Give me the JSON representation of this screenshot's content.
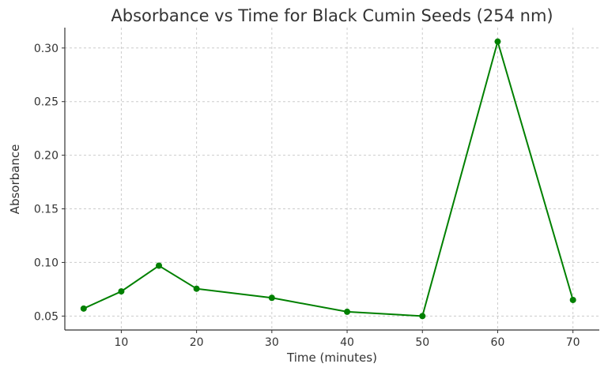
{
  "chart_data": {
    "type": "line",
    "title": "Absorbance vs Time for Black Cumin Seeds (254 nm)",
    "xlabel": "Time (minutes)",
    "ylabel": "Absorbance",
    "x": [
      5,
      10,
      15,
      20,
      30,
      40,
      50,
      60,
      70
    ],
    "series": [
      {
        "name": "Absorbance",
        "color": "#008000",
        "values": [
          0.057,
          0.073,
          0.097,
          0.0755,
          0.067,
          0.054,
          0.05,
          0.306,
          0.065
        ]
      }
    ],
    "xlim": [
      2.5,
      73.5
    ],
    "ylim": [
      0.037,
      0.319
    ],
    "xticks": [
      10,
      20,
      30,
      40,
      50,
      60,
      70
    ],
    "xtick_labels": [
      "10",
      "20",
      "30",
      "40",
      "50",
      "60",
      "70"
    ],
    "yticks": [
      0.05,
      0.1,
      0.15,
      0.2,
      0.25,
      0.3
    ],
    "ytick_labels": [
      "0.05",
      "0.10",
      "0.15",
      "0.20",
      "0.25",
      "0.30"
    ],
    "grid": true
  }
}
